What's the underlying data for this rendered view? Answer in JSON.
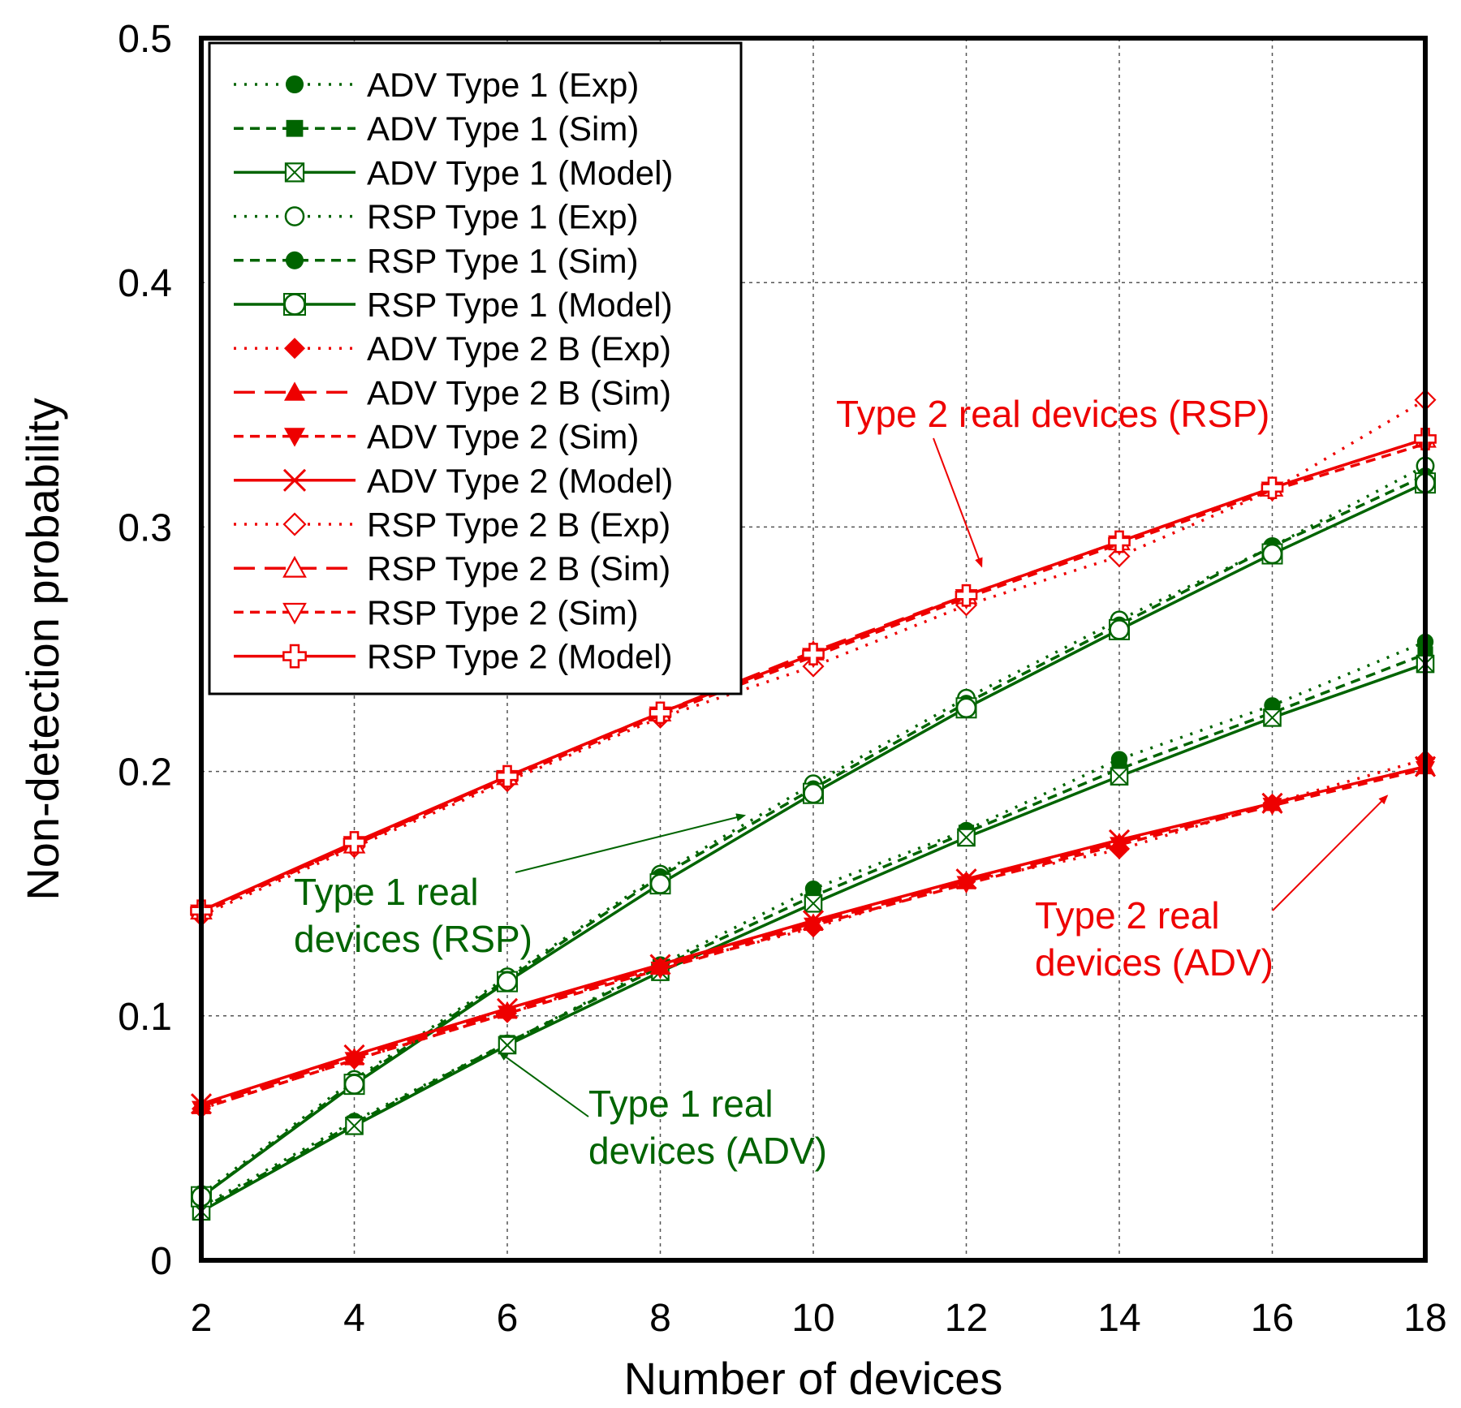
{
  "chart_data": {
    "type": "line",
    "title": "",
    "xlabel": "Number of devices",
    "ylabel": "Non-detection probability",
    "xlim": [
      2,
      18
    ],
    "ylim": [
      0,
      0.5
    ],
    "xticks": [
      2,
      4,
      6,
      8,
      10,
      12,
      14,
      16,
      18
    ],
    "yticks": [
      0,
      0.1,
      0.2,
      0.3,
      0.4,
      0.5
    ],
    "xtick_labels": [
      "2",
      "4",
      "6",
      "8",
      "10",
      "12",
      "14",
      "16",
      "18"
    ],
    "ytick_labels": [
      "0",
      "0.1",
      "0.2",
      "0.3",
      "0.4",
      "0.5"
    ],
    "grid": true,
    "legend_position": "top-left",
    "x": [
      2,
      4,
      6,
      8,
      10,
      12,
      14,
      16,
      18
    ],
    "series": [
      {
        "name": "ADV  Type 1 (Exp)",
        "color": "#006400",
        "dash": "dot",
        "marker": "circle-filled",
        "values": [
          0.022,
          0.057,
          0.089,
          0.121,
          0.152,
          0.176,
          0.205,
          0.227,
          0.253
        ]
      },
      {
        "name": "ADV  Type 1 (Sim)",
        "color": "#006400",
        "dash": "dash",
        "marker": "square-filled",
        "values": [
          0.021,
          0.056,
          0.089,
          0.12,
          0.149,
          0.175,
          0.201,
          0.224,
          0.248
        ]
      },
      {
        "name": "ADV  Type 1 (Model)",
        "color": "#006400",
        "dash": "solid",
        "marker": "square-x",
        "values": [
          0.02,
          0.055,
          0.088,
          0.118,
          0.146,
          0.173,
          0.198,
          0.222,
          0.244
        ]
      },
      {
        "name": "RSP Type 1 (Exp)",
        "color": "#006400",
        "dash": "dot",
        "marker": "circle-open",
        "values": [
          0.027,
          0.074,
          0.116,
          0.158,
          0.195,
          0.23,
          0.262,
          0.292,
          0.325
        ]
      },
      {
        "name": "RSP Type 1 (Sim)",
        "color": "#006400",
        "dash": "dash",
        "marker": "circle-filled",
        "values": [
          0.026,
          0.073,
          0.115,
          0.157,
          0.193,
          0.228,
          0.26,
          0.292,
          0.321
        ]
      },
      {
        "name": "RSP Type 1 (Model)",
        "color": "#006400",
        "dash": "solid",
        "marker": "circle-box",
        "values": [
          0.026,
          0.072,
          0.114,
          0.154,
          0.191,
          0.226,
          0.258,
          0.289,
          0.318
        ]
      },
      {
        "name": "ADV  Type 2 B (Exp)",
        "color": "#ee0000",
        "dash": "dot",
        "marker": "diamond-filled",
        "values": [
          0.062,
          0.082,
          0.101,
          0.12,
          0.136,
          0.155,
          0.168,
          0.187,
          0.205
        ]
      },
      {
        "name": "ADV  Type 2 B (Sim)",
        "color": "#ee0000",
        "dash": "dashlong",
        "marker": "triangle-up-filled",
        "values": [
          0.063,
          0.083,
          0.102,
          0.12,
          0.138,
          0.155,
          0.171,
          0.187,
          0.202
        ]
      },
      {
        "name": "ADV  Type 2 (Sim)",
        "color": "#ee0000",
        "dash": "dash",
        "marker": "triangle-down-filled",
        "values": [
          0.062,
          0.082,
          0.101,
          0.119,
          0.137,
          0.154,
          0.17,
          0.186,
          0.201
        ]
      },
      {
        "name": "ADV  Type 2  (Model)",
        "color": "#ee0000",
        "dash": "solid",
        "marker": "x",
        "values": [
          0.064,
          0.084,
          0.103,
          0.121,
          0.139,
          0.156,
          0.172,
          0.187,
          0.202
        ]
      },
      {
        "name": "RSP Type 2 B (Exp)",
        "color": "#ee0000",
        "dash": "dot",
        "marker": "diamond-open",
        "values": [
          0.141,
          0.169,
          0.196,
          0.222,
          0.243,
          0.268,
          0.288,
          0.315,
          0.352
        ]
      },
      {
        "name": "RSP Type 2 B (Sim)",
        "color": "#ee0000",
        "dash": "dashlong",
        "marker": "triangle-up-open",
        "values": [
          0.143,
          0.17,
          0.198,
          0.224,
          0.249,
          0.272,
          0.294,
          0.316,
          0.336
        ]
      },
      {
        "name": "RSP Type 2 (Sim)",
        "color": "#ee0000",
        "dash": "dash",
        "marker": "triangle-down-open",
        "values": [
          0.142,
          0.17,
          0.197,
          0.223,
          0.247,
          0.271,
          0.293,
          0.315,
          0.334
        ]
      },
      {
        "name": "RSP Type 2 (Model)",
        "color": "#ee0000",
        "dash": "solid",
        "marker": "cross-open",
        "values": [
          0.143,
          0.171,
          0.198,
          0.224,
          0.248,
          0.272,
          0.294,
          0.316,
          0.336
        ]
      }
    ],
    "annotations": [
      {
        "id": "type2-rsp",
        "lines": [
          "Type 2  real devices (RSP)"
        ],
        "color": "#ee0000",
        "arrow_to": [
          12.2,
          0.284
        ]
      },
      {
        "id": "type1-rsp",
        "lines": [
          "Type 1 real",
          "devices (RSP)"
        ],
        "color": "#006400",
        "arrow_to": [
          9.1,
          0.182
        ]
      },
      {
        "id": "type2-adv",
        "lines": [
          "Type 2 real",
          "devices (ADV)"
        ],
        "color": "#ee0000",
        "arrow_to": [
          17.5,
          0.19
        ]
      },
      {
        "id": "type1-adv",
        "lines": [
          "Type 1 real",
          "devices (ADV)"
        ],
        "color": "#006400",
        "arrow_to": [
          5.9,
          0.085
        ]
      }
    ]
  }
}
